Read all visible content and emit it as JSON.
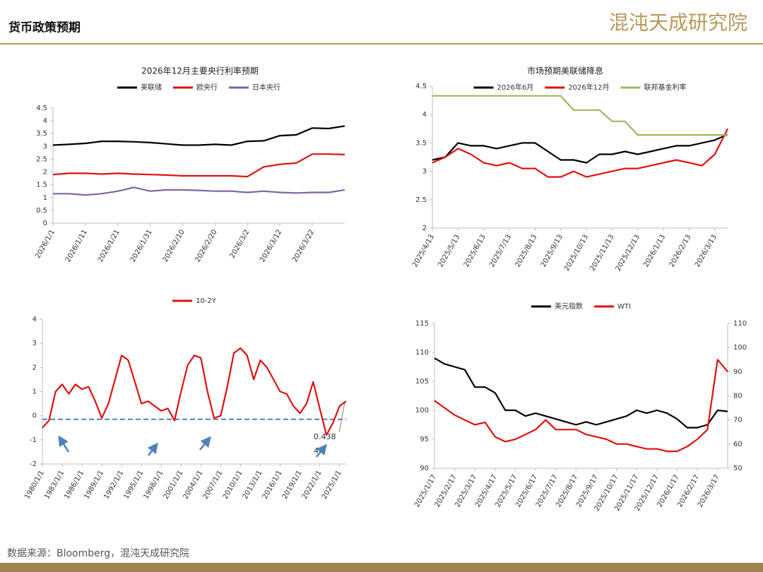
{
  "header": {
    "title": "货币政策预期",
    "logo": "混沌天成研究院"
  },
  "footer": {
    "source": "数据来源：Bloomberg，混沌天成研究院"
  },
  "chart_data": [
    {
      "type": "line",
      "title": "2026年12月主要央行利率预期",
      "categories": [
        "2026/1/1",
        null,
        "2026/1/11",
        null,
        "2026/1/21",
        null,
        "2026/1/31",
        null,
        "2026/2/10",
        null,
        "2026/2/20",
        null,
        "2026/3/2",
        null,
        "2026/3/12",
        null,
        "2026/3/22",
        null,
        null
      ],
      "series": [
        {
          "name": "美联储",
          "color": "#000000",
          "values": [
            3.05,
            3.08,
            3.12,
            3.2,
            3.2,
            3.18,
            3.15,
            3.1,
            3.05,
            3.05,
            3.08,
            3.05,
            3.2,
            3.22,
            3.42,
            3.45,
            3.72,
            3.7,
            3.8
          ]
        },
        {
          "name": "欧央行",
          "color": "#e01010",
          "values": [
            1.9,
            1.95,
            1.95,
            1.92,
            1.95,
            1.92,
            1.9,
            1.88,
            1.85,
            1.85,
            1.85,
            1.85,
            1.82,
            2.2,
            2.3,
            2.35,
            2.7,
            2.7,
            2.68
          ]
        },
        {
          "name": "日本央行",
          "color": "#8064a2",
          "values": [
            1.15,
            1.15,
            1.1,
            1.15,
            1.25,
            1.4,
            1.25,
            1.3,
            1.3,
            1.28,
            1.25,
            1.25,
            1.2,
            1.25,
            1.2,
            1.18,
            1.2,
            1.2,
            1.3
          ]
        }
      ],
      "ylim": [
        0,
        4.5
      ],
      "yticks": [
        0,
        0.5,
        1,
        1.5,
        2,
        2.5,
        3,
        3.5,
        4,
        4.5
      ]
    },
    {
      "type": "line",
      "title": "市场预期美联储降息",
      "categories": [
        "2025/4/13",
        null,
        "2025/5/13",
        null,
        "2025/6/13",
        null,
        "2025/7/13",
        null,
        "2025/8/13",
        null,
        "2025/9/13",
        null,
        "2025/10/13",
        null,
        "2025/11/13",
        null,
        "2025/12/13",
        null,
        "2026/1/13",
        null,
        "2026/2/13",
        null,
        "2026/3/13",
        null
      ],
      "series": [
        {
          "name": "2026年6月",
          "color": "#000000",
          "values": [
            3.2,
            3.25,
            3.5,
            3.45,
            3.45,
            3.4,
            3.45,
            3.5,
            3.5,
            3.35,
            3.2,
            3.2,
            3.15,
            3.3,
            3.3,
            3.35,
            3.3,
            3.35,
            3.4,
            3.45,
            3.45,
            3.5,
            3.55,
            3.65
          ]
        },
        {
          "name": "2026年12月",
          "color": "#e01010",
          "values": [
            3.15,
            3.25,
            3.4,
            3.3,
            3.15,
            3.1,
            3.15,
            3.05,
            3.05,
            2.9,
            2.9,
            3.0,
            2.9,
            2.95,
            3.0,
            3.05,
            3.05,
            3.1,
            3.15,
            3.2,
            3.15,
            3.1,
            3.3,
            3.75
          ]
        },
        {
          "name": "联邦基金利率",
          "color": "#9bbb59",
          "values": [
            4.33,
            4.33,
            4.33,
            4.33,
            4.33,
            4.33,
            4.33,
            4.33,
            4.33,
            4.33,
            4.33,
            4.08,
            4.08,
            4.08,
            3.88,
            3.88,
            3.64,
            3.64,
            3.64,
            3.64,
            3.64,
            3.64,
            3.64,
            3.64
          ]
        }
      ],
      "ylim": [
        2,
        4.5
      ],
      "yticks": [
        2,
        2.5,
        3,
        3.5,
        4,
        4.5
      ]
    },
    {
      "type": "line",
      "categories": [
        "1980/1/1",
        null,
        null,
        "1983/1/1",
        null,
        null,
        "1986/1/1",
        null,
        null,
        "1989/1/1",
        null,
        null,
        "1992/1/1",
        null,
        null,
        "1995/1/1",
        null,
        null,
        "1998/1/1",
        null,
        null,
        "2001/1/1",
        null,
        null,
        "2004/1/1",
        null,
        null,
        "2007/1/1",
        null,
        null,
        "2010/1/1",
        null,
        null,
        "2013/1/1",
        null,
        null,
        "2016/1/1",
        null,
        null,
        "2019/1/1",
        null,
        null,
        "2022/1/1",
        null,
        null,
        "2025/1/1",
        null
      ],
      "series": [
        {
          "name": "10-2Y",
          "color": "#e01010",
          "values": [
            -0.5,
            -0.2,
            1.0,
            1.3,
            0.9,
            1.3,
            1.1,
            1.2,
            0.6,
            -0.1,
            0.5,
            1.5,
            2.5,
            2.3,
            1.4,
            0.5,
            0.6,
            0.4,
            0.2,
            0.3,
            -0.2,
            1.0,
            2.1,
            2.5,
            2.4,
            1.0,
            -0.1,
            0.0,
            1.2,
            2.6,
            2.8,
            2.5,
            1.5,
            2.3,
            2.0,
            1.5,
            1.0,
            0.9,
            0.4,
            0.1,
            0.5,
            1.4,
            0.3,
            -0.8,
            -0.3,
            0.4,
            0.6
          ]
        }
      ],
      "ylim": [
        -2,
        4
      ],
      "yticks": [
        -2,
        -1,
        0,
        1,
        2,
        3,
        4
      ],
      "reference_line": -0.15,
      "annotation": "0.4384"
    },
    {
      "type": "line",
      "categories": [
        "2025/1/17",
        null,
        "2025/2/17",
        null,
        "2025/3/17",
        null,
        "2025/4/17",
        null,
        "2025/5/17",
        null,
        "2025/6/17",
        null,
        "2025/7/17",
        null,
        "2025/8/17",
        null,
        "2025/9/17",
        null,
        "2025/10/17",
        null,
        "2025/11/17",
        null,
        "2025/12/17",
        null,
        "2026/1/17",
        null,
        "2026/2/17",
        null,
        "2026/3/17",
        null
      ],
      "series": [
        {
          "name": "美元指数",
          "color": "#000000",
          "values": [
            109,
            108,
            107.5,
            107,
            104,
            104,
            103,
            100,
            100,
            99,
            99.5,
            99,
            98.5,
            98,
            97.5,
            98,
            97.5,
            98,
            98.5,
            99,
            100,
            99.5,
            100,
            99.5,
            98.5,
            97,
            97,
            97.5,
            100,
            99.8
          ]
        },
        {
          "name": "WTI",
          "color": "#e01010",
          "axis": "y2",
          "values": [
            78,
            75,
            72,
            70,
            68,
            69,
            63,
            61,
            62,
            64,
            66,
            70,
            66,
            66,
            66,
            64,
            63,
            62,
            60,
            60,
            59,
            58,
            58,
            57,
            57,
            59,
            62,
            66,
            95,
            90
          ]
        }
      ],
      "ylim": [
        90,
        115
      ],
      "yticks": [
        90,
        95,
        100,
        105,
        110,
        115
      ],
      "y2lim": [
        50,
        110
      ],
      "y2ticks": [
        50,
        60,
        70,
        80,
        90,
        100,
        110
      ]
    }
  ]
}
